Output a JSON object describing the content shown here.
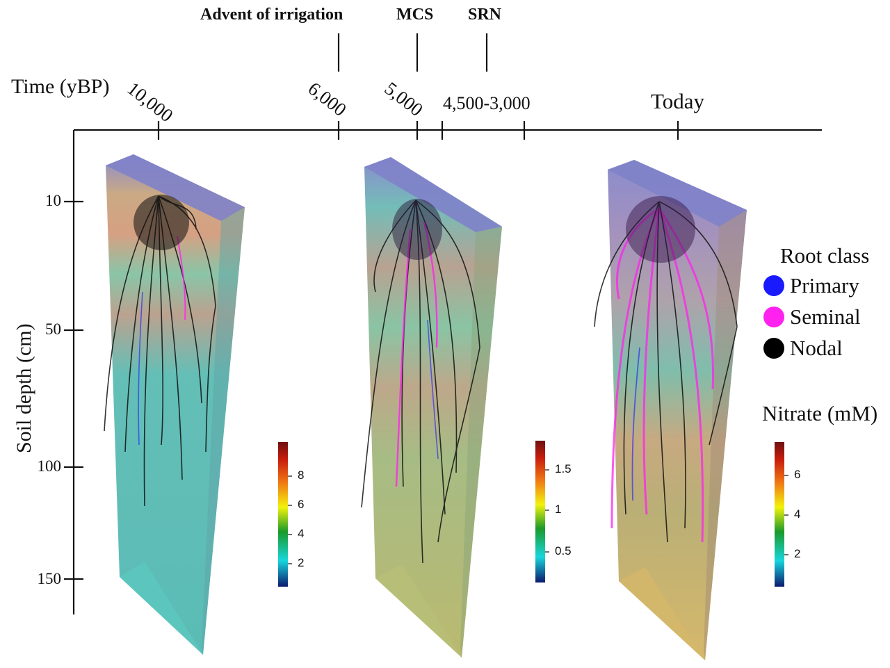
{
  "events": {
    "irrigation": "Advent of irrigation",
    "mcs": "MCS",
    "srn": "SRN"
  },
  "time_axis": {
    "title": "Time (yBP)",
    "ticks": [
      "10,000",
      "6,000",
      "5,000",
      "4,500-3,000",
      "Today"
    ]
  },
  "depth_axis": {
    "title": "Soil depth (cm)",
    "ticks": [
      "10",
      "50",
      "100",
      "150"
    ]
  },
  "legend": {
    "root_class_title": "Root class",
    "classes": [
      {
        "label": "Primary",
        "color": "#1a1aff"
      },
      {
        "label": "Seminal",
        "color": "#ff22ee"
      },
      {
        "label": "Nodal",
        "color": "#000000"
      }
    ],
    "nitrate_title": "Nitrate (mM)"
  },
  "colorbars": [
    {
      "ticks": [
        "8",
        "6",
        "4",
        "2"
      ]
    },
    {
      "ticks": [
        "1.5",
        "1",
        "0.5"
      ]
    },
    {
      "ticks": [
        "6",
        "4",
        "2"
      ]
    }
  ],
  "colors": {
    "soil_low": "#49b8b2",
    "soil_mid": "#a8b86a",
    "soil_high": "#d6b560",
    "box_top": "#7f82c9"
  }
}
